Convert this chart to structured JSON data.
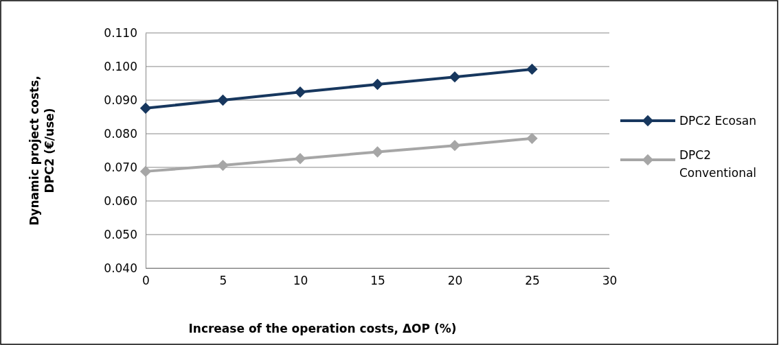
{
  "chart_data": {
    "type": "line",
    "xlabel": "Increase of the operation costs, ΔOP (%)",
    "ylabel": "Dynamic project costs, DPC2 (€/use)",
    "x": [
      0,
      5,
      10,
      15,
      20,
      25
    ],
    "series": [
      {
        "name": "DPC2 Ecosan",
        "color": "#17375e",
        "values": [
          0.0876,
          0.09,
          0.0924,
          0.0947,
          0.0969,
          0.0992
        ]
      },
      {
        "name": "DPC2 Conventional",
        "color": "#a6a6a6",
        "values": [
          0.0688,
          0.0706,
          0.0726,
          0.0746,
          0.0765,
          0.0786
        ]
      }
    ],
    "xlim": [
      0,
      30
    ],
    "xticks": [
      0,
      5,
      10,
      15,
      20,
      25,
      30
    ],
    "ylim": [
      0.04,
      0.11
    ],
    "yticks": [
      {
        "value": 0.04,
        "label": "0.040"
      },
      {
        "value": 0.05,
        "label": "0.050"
      },
      {
        "value": 0.06,
        "label": "0.060"
      },
      {
        "value": 0.07,
        "label": "0.070"
      },
      {
        "value": 0.08,
        "label": "0.080"
      },
      {
        "value": 0.09,
        "label": "0.090"
      },
      {
        "value": 0.1,
        "label": "0.100"
      },
      {
        "value": 0.11,
        "label": "0.110"
      }
    ],
    "grid": "y",
    "legend": "right",
    "marker": "diamond",
    "line_style": "solid"
  }
}
